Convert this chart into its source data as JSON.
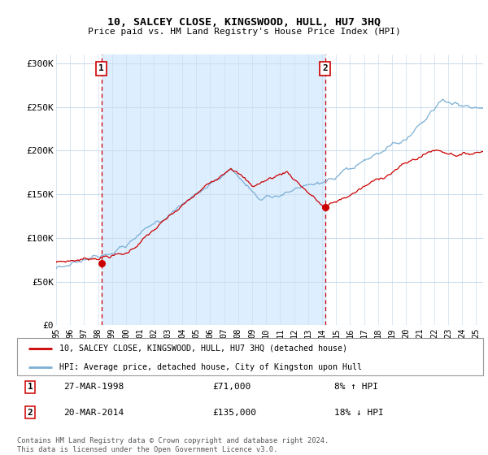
{
  "title": "10, SALCEY CLOSE, KINGSWOOD, HULL, HU7 3HQ",
  "subtitle": "Price paid vs. HM Land Registry's House Price Index (HPI)",
  "ylim": [
    0,
    310000
  ],
  "yticks": [
    0,
    50000,
    100000,
    150000,
    200000,
    250000,
    300000
  ],
  "ytick_labels": [
    "£0",
    "£50K",
    "£100K",
    "£150K",
    "£200K",
    "£250K",
    "£300K"
  ],
  "sale1_x": 1998.23,
  "sale1_y": 71000,
  "sale1_label": "27-MAR-1998",
  "sale1_price": "£71,000",
  "sale1_hpi": "8% ↑ HPI",
  "sale2_x": 2014.22,
  "sale2_y": 135000,
  "sale2_label": "20-MAR-2014",
  "sale2_price": "£135,000",
  "sale2_hpi": "18% ↓ HPI",
  "hpi_color": "#7bafd4",
  "price_color": "#cc0000",
  "vline_color": "#cc0000",
  "shade_color": "#ddeeff",
  "background_color": "#ffffff",
  "grid_color": "#ccddee",
  "legend_label_red": "10, SALCEY CLOSE, KINGSWOOD, HULL, HU7 3HQ (detached house)",
  "legend_label_blue": "HPI: Average price, detached house, City of Kingston upon Hull",
  "footer": "Contains HM Land Registry data © Crown copyright and database right 2024.\nThis data is licensed under the Open Government Licence v3.0.",
  "xmin": 1995.0,
  "xmax": 2025.5
}
